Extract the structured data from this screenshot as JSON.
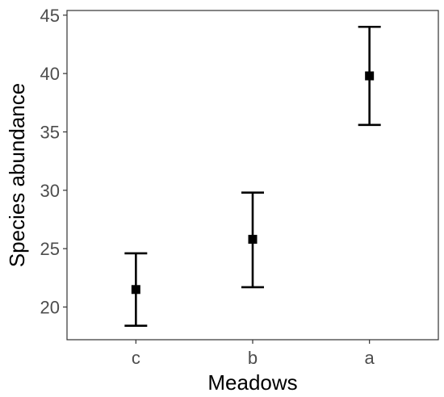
{
  "chart_data": {
    "type": "scatter",
    "xlabel": "Meadows",
    "ylabel": "Species abundance",
    "categories": [
      "c",
      "b",
      "a"
    ],
    "points": [
      {
        "category": "c",
        "mean": 21.5,
        "lower": 18.4,
        "upper": 24.6
      },
      {
        "category": "b",
        "mean": 25.8,
        "lower": 21.7,
        "upper": 29.8
      },
      {
        "category": "a",
        "mean": 39.8,
        "lower": 35.6,
        "upper": 44.0
      }
    ],
    "ylim": [
      17.2,
      45.4
    ],
    "yticks": [
      20,
      25,
      30,
      35,
      40,
      45
    ],
    "grid": false,
    "legend": "none",
    "colors": {
      "marker": "#000000",
      "errorbar": "#000000",
      "axis": "#333333",
      "tick_label": "#4d4d4d"
    }
  }
}
